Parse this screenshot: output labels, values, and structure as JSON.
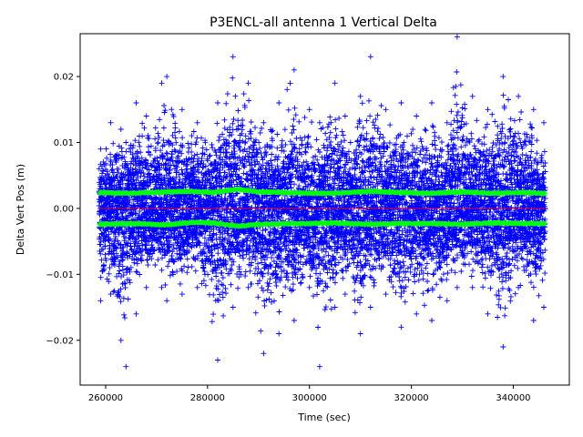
{
  "chart_data": {
    "type": "scatter",
    "title": "P3ENCL-all antenna 1 Vertical Delta",
    "xlabel": "Time (sec)",
    "ylabel": "Delta Vert Pos (m)",
    "xlim": [
      255000,
      351000
    ],
    "ylim": [
      -0.0268,
      0.0265
    ],
    "x_ticks": [
      260000,
      280000,
      300000,
      320000,
      340000
    ],
    "x_tick_labels": [
      "260000",
      "280000",
      "300000",
      "320000",
      "340000"
    ],
    "y_ticks": [
      -0.02,
      -0.01,
      0.0,
      0.01,
      0.02
    ],
    "y_tick_labels": [
      "−0.02",
      "−0.01",
      "0.00",
      "0.01",
      "0.02"
    ],
    "grid": false,
    "legend": "none",
    "series": [
      {
        "marker": "+",
        "color": "#0000ff",
        "x_range": [
          258700,
          346300
        ],
        "envelope": [
          {
            "x": 259000,
            "max": 0.009,
            "min": -0.014
          },
          {
            "x": 261000,
            "max": 0.013,
            "min": -0.013
          },
          {
            "x": 263000,
            "max": 0.012,
            "min": -0.02
          },
          {
            "x": 264000,
            "max": 0.01,
            "min": -0.024
          },
          {
            "x": 266000,
            "max": 0.016,
            "min": -0.016
          },
          {
            "x": 268000,
            "max": 0.014,
            "min": -0.012
          },
          {
            "x": 271000,
            "max": 0.019,
            "min": -0.012
          },
          {
            "x": 272000,
            "max": 0.02,
            "min": -0.014
          },
          {
            "x": 275000,
            "max": 0.015,
            "min": -0.013
          },
          {
            "x": 278000,
            "max": 0.013,
            "min": -0.012
          },
          {
            "x": 282000,
            "max": 0.016,
            "min": -0.023
          },
          {
            "x": 285000,
            "max": 0.023,
            "min": -0.015
          },
          {
            "x": 288000,
            "max": 0.019,
            "min": -0.012
          },
          {
            "x": 291000,
            "max": 0.013,
            "min": -0.022
          },
          {
            "x": 294000,
            "max": 0.016,
            "min": -0.019
          },
          {
            "x": 297000,
            "max": 0.021,
            "min": -0.017
          },
          {
            "x": 300000,
            "max": 0.015,
            "min": -0.012
          },
          {
            "x": 302000,
            "max": 0.013,
            "min": -0.024
          },
          {
            "x": 305000,
            "max": 0.019,
            "min": -0.015
          },
          {
            "x": 307000,
            "max": 0.014,
            "min": -0.013
          },
          {
            "x": 310000,
            "max": 0.017,
            "min": -0.019
          },
          {
            "x": 312000,
            "max": 0.023,
            "min": -0.015
          },
          {
            "x": 315000,
            "max": 0.015,
            "min": -0.013
          },
          {
            "x": 318000,
            "max": 0.016,
            "min": -0.018
          },
          {
            "x": 321000,
            "max": 0.014,
            "min": -0.016
          },
          {
            "x": 324000,
            "max": 0.016,
            "min": -0.017
          },
          {
            "x": 327000,
            "max": 0.013,
            "min": -0.014
          },
          {
            "x": 329000,
            "max": 0.026,
            "min": -0.012
          },
          {
            "x": 332000,
            "max": 0.017,
            "min": -0.012
          },
          {
            "x": 335000,
            "max": 0.015,
            "min": -0.016
          },
          {
            "x": 338000,
            "max": 0.02,
            "min": -0.021
          },
          {
            "x": 341000,
            "max": 0.017,
            "min": -0.012
          },
          {
            "x": 344000,
            "max": 0.015,
            "min": -0.017
          },
          {
            "x": 346000,
            "max": 0.013,
            "min": -0.015
          }
        ]
      },
      {
        "marker": "+",
        "color": "#00ff00",
        "x_range": [
          258700,
          346300
        ],
        "upper": [
          {
            "x": 259000,
            "y": 0.0024
          },
          {
            "x": 265000,
            "y": 0.0023
          },
          {
            "x": 272000,
            "y": 0.0025
          },
          {
            "x": 277000,
            "y": 0.0026
          },
          {
            "x": 281000,
            "y": 0.0024
          },
          {
            "x": 286000,
            "y": 0.0029
          },
          {
            "x": 290000,
            "y": 0.0025
          },
          {
            "x": 296000,
            "y": 0.0024
          },
          {
            "x": 300000,
            "y": 0.0023
          },
          {
            "x": 305000,
            "y": 0.0023
          },
          {
            "x": 312000,
            "y": 0.0026
          },
          {
            "x": 318000,
            "y": 0.0024
          },
          {
            "x": 324000,
            "y": 0.0023
          },
          {
            "x": 330000,
            "y": 0.0025
          },
          {
            "x": 336000,
            "y": 0.0023
          },
          {
            "x": 342000,
            "y": 0.0024
          },
          {
            "x": 346000,
            "y": 0.0023
          }
        ],
        "lower": [
          {
            "x": 259000,
            "y": -0.0024
          },
          {
            "x": 265000,
            "y": -0.0023
          },
          {
            "x": 272000,
            "y": -0.0025
          },
          {
            "x": 277000,
            "y": -0.0021
          },
          {
            "x": 281000,
            "y": -0.0022
          },
          {
            "x": 286000,
            "y": -0.0027
          },
          {
            "x": 290000,
            "y": -0.0024
          },
          {
            "x": 296000,
            "y": -0.0023
          },
          {
            "x": 300000,
            "y": -0.0023
          },
          {
            "x": 305000,
            "y": -0.0022
          },
          {
            "x": 312000,
            "y": -0.0024
          },
          {
            "x": 318000,
            "y": -0.0023
          },
          {
            "x": 324000,
            "y": -0.0023
          },
          {
            "x": 330000,
            "y": -0.0024
          },
          {
            "x": 336000,
            "y": -0.0022
          },
          {
            "x": 342000,
            "y": -0.0023
          },
          {
            "x": 346000,
            "y": -0.0023
          }
        ]
      },
      {
        "marker": "line",
        "color": "#ff0000",
        "x": [
          258700,
          346300
        ],
        "y": [
          0.0,
          0.0
        ]
      }
    ]
  }
}
